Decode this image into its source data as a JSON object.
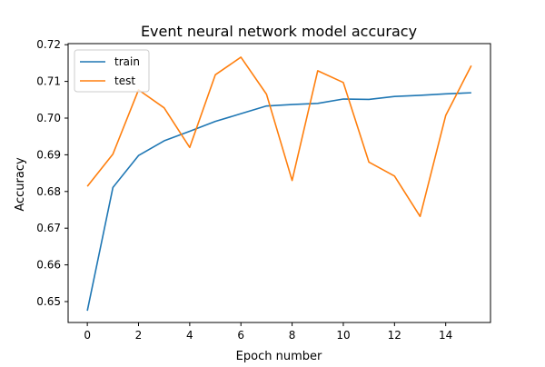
{
  "chart_data": {
    "type": "line",
    "title": "Event neural network model accuracy",
    "xlabel": "Epoch number",
    "ylabel": "Accuracy",
    "xlim": [
      -0.75,
      15.75
    ],
    "ylim": [
      0.6443,
      0.7203
    ],
    "x_ticks": [
      0,
      2,
      4,
      6,
      8,
      10,
      12,
      14
    ],
    "y_ticks": [
      0.65,
      0.66,
      0.67,
      0.68,
      0.69,
      0.7,
      0.71,
      0.72
    ],
    "grid": false,
    "legend_position": "upper-left",
    "x": [
      0,
      1,
      2,
      3,
      4,
      5,
      6,
      7,
      8,
      9,
      10,
      11,
      12,
      13,
      14,
      15
    ],
    "series": [
      {
        "name": "train",
        "color": "#1f77b4",
        "values": [
          0.6475,
          0.6811,
          0.6898,
          0.6938,
          0.6964,
          0.6991,
          0.7012,
          0.7033,
          0.7037,
          0.704,
          0.7052,
          0.7051,
          0.7059,
          0.7062,
          0.7066,
          0.7069
        ]
      },
      {
        "name": "test",
        "color": "#ff7f0e",
        "values": [
          0.6814,
          0.6902,
          0.7077,
          0.7028,
          0.692,
          0.7118,
          0.7166,
          0.7065,
          0.683,
          0.7129,
          0.7097,
          0.688,
          0.6842,
          0.6732,
          0.7007,
          0.7143
        ]
      }
    ]
  }
}
